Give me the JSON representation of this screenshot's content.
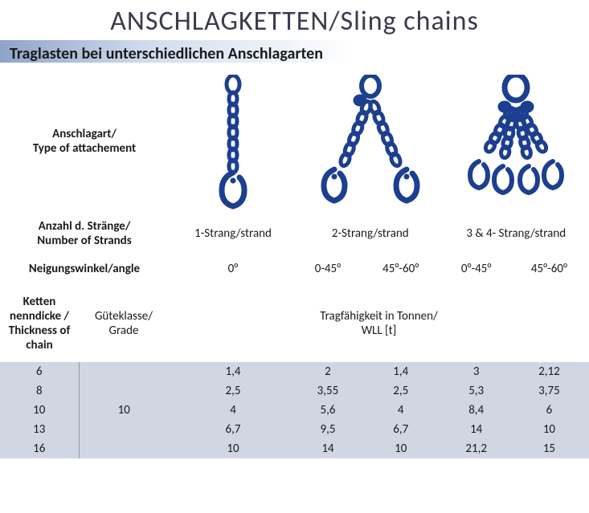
{
  "title": "ANSCHLAGKETTEN/Sling chains",
  "subtitle": "Traglasten bei unterschiedlichen Anschlagarten",
  "row_labels": {
    "attachment": "Anschlagart/\nType of attachement",
    "strands": "Anzahl d. Stränge/\nNumber of Strands",
    "angle": "Neigungswinkel/angle",
    "thickness": "Ketten nenndicke / Thickness of chain",
    "grade": "Güteklasse/ Grade",
    "wll": "Tragfähigkeit in Tonnen/\nWLL [t]"
  },
  "strand_headers": [
    "1-Strang/strand",
    "2-Strang/strand",
    "3 & 4- Strang/strand"
  ],
  "angle_headers": [
    "0°",
    "0-45°",
    "45°-60°",
    "0°-45°",
    "45°-60°"
  ],
  "grade_value": "10",
  "rows": [
    {
      "thickness": "6",
      "v": [
        "1,4",
        "2",
        "1,4",
        "3",
        "2,12"
      ]
    },
    {
      "thickness": "8",
      "v": [
        "2,5",
        "3,55",
        "2,5",
        "5,3",
        "3,75"
      ]
    },
    {
      "thickness": "10",
      "v": [
        "4",
        "5,6",
        "4",
        "8,4",
        "6"
      ]
    },
    {
      "thickness": "13",
      "v": [
        "6,7",
        "9,5",
        "6,7",
        "14",
        "10"
      ]
    },
    {
      "thickness": "16",
      "v": [
        "10",
        "14",
        "10",
        "21,2",
        "15"
      ]
    }
  ],
  "colors": {
    "chain_blue": "#1c3f8f",
    "chain_highlight": "#3a63c8",
    "shade": "#d0d6e2",
    "border": "#7a7a7a",
    "gradient_start": "#8ea3c9"
  }
}
